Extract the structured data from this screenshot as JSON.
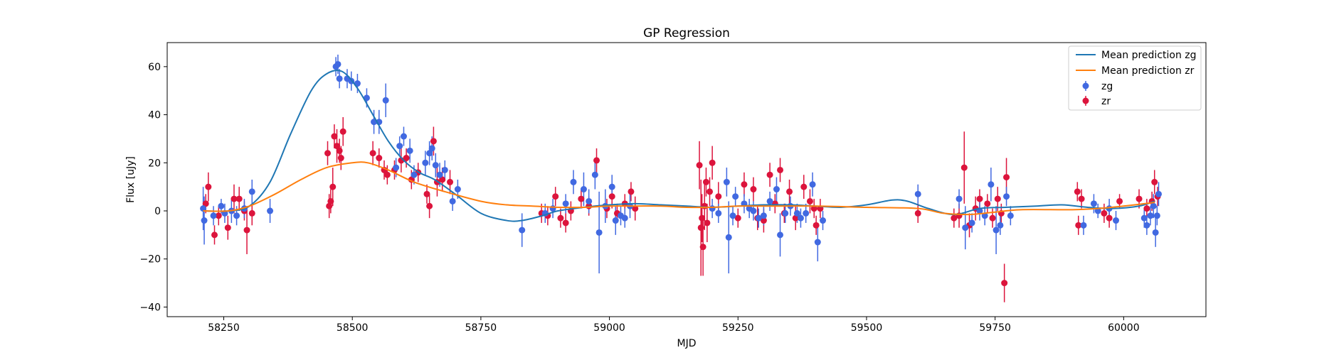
{
  "chart_data": {
    "type": "scatter",
    "title": "GP Regression",
    "xlabel": "MJD",
    "ylabel": "Flux [uJy]",
    "xlim": [
      58140,
      60160
    ],
    "ylim": [
      -44,
      70
    ],
    "xticks": [
      58250,
      58500,
      58750,
      59000,
      59250,
      59500,
      59750,
      60000
    ],
    "yticks": [
      -40,
      -20,
      0,
      20,
      40,
      60
    ],
    "legend_position": "upper right",
    "colors": {
      "zg_points": "#4169e1",
      "zr_points": "#dc143c",
      "zg_line": "#1f77b4",
      "zr_line": "#ff7f0e"
    },
    "lines": [
      {
        "name": "Mean prediction zg",
        "color": "#1f77b4",
        "x": [
          58210,
          58260,
          58300,
          58340,
          58380,
          58420,
          58450,
          58480,
          58510,
          58540,
          58570,
          58600,
          58630,
          58660,
          58700,
          58750,
          58800,
          58830,
          58870,
          58900,
          58950,
          59000,
          59050,
          59100,
          59150,
          59200,
          59250,
          59300,
          59350,
          59400,
          59450,
          59500,
          59550,
          59580,
          59620,
          59670,
          59720,
          59770,
          59830,
          59880,
          59930,
          59980,
          60030,
          60060
        ],
        "y": [
          0,
          0,
          2,
          12,
          32,
          50,
          57,
          58,
          51,
          40,
          29,
          21,
          16,
          13,
          7,
          -1,
          -4,
          -4,
          -2,
          0,
          1.5,
          2.5,
          3,
          2.5,
          2,
          1.5,
          2,
          2.5,
          2.5,
          2,
          1.5,
          2.5,
          4.5,
          4,
          1,
          -1.5,
          1,
          1.5,
          2,
          2.5,
          1.5,
          1,
          2,
          4
        ]
      },
      {
        "name": "Mean prediction zr",
        "color": "#ff7f0e",
        "x": [
          58210,
          58260,
          58300,
          58350,
          58400,
          58450,
          58500,
          58530,
          58570,
          58620,
          58680,
          58750,
          58800,
          58850,
          58900,
          58950,
          59000,
          59050,
          59100,
          59150,
          59200,
          59250,
          59300,
          59400,
          59500,
          59600,
          59650,
          59700,
          59750,
          59800,
          59900,
          59950,
          60000,
          60060
        ],
        "y": [
          0,
          0,
          2,
          7,
          13,
          18,
          20,
          20,
          17,
          12,
          8,
          4,
          2.5,
          2,
          1.5,
          1.5,
          2,
          2,
          2,
          1.5,
          1.5,
          2,
          2,
          2,
          1.5,
          1,
          -1,
          -1.5,
          -0.5,
          0.5,
          0.5,
          1,
          2,
          3.5
        ]
      }
    ],
    "series": [
      {
        "name": "zg",
        "color": "#4169e1",
        "points": [
          [
            58210,
            1,
            9
          ],
          [
            58212,
            -4,
            10
          ],
          [
            58230,
            -2,
            4
          ],
          [
            58245,
            2,
            3
          ],
          [
            58252,
            -1,
            4
          ],
          [
            58265,
            0,
            5
          ],
          [
            58275,
            -2,
            4
          ],
          [
            58290,
            1,
            4
          ],
          [
            58305,
            8,
            5
          ],
          [
            58340,
            0,
            5
          ],
          [
            58468,
            60,
            4
          ],
          [
            58472,
            61,
            4
          ],
          [
            58475,
            55,
            4
          ],
          [
            58490,
            55,
            4
          ],
          [
            58498,
            54,
            4
          ],
          [
            58510,
            53,
            4
          ],
          [
            58528,
            47,
            4
          ],
          [
            58542,
            37,
            5
          ],
          [
            58552,
            37,
            5
          ],
          [
            58565,
            46,
            7
          ],
          [
            58585,
            18,
            4
          ],
          [
            58592,
            27,
            4
          ],
          [
            58600,
            31,
            4
          ],
          [
            58612,
            25,
            5
          ],
          [
            58620,
            15,
            4
          ],
          [
            58642,
            20,
            5
          ],
          [
            58650,
            24,
            5
          ],
          [
            58655,
            26,
            5
          ],
          [
            58662,
            19,
            5
          ],
          [
            58670,
            15,
            5
          ],
          [
            58680,
            17,
            4
          ],
          [
            58695,
            4,
            4
          ],
          [
            58705,
            9,
            4
          ],
          [
            58830,
            -8,
            7
          ],
          [
            58875,
            -1,
            4
          ],
          [
            58890,
            1,
            4
          ],
          [
            58915,
            3,
            4
          ],
          [
            58930,
            12,
            5
          ],
          [
            58950,
            9,
            7
          ],
          [
            58960,
            4,
            5
          ],
          [
            58972,
            15,
            6
          ],
          [
            58980,
            -9,
            17
          ],
          [
            58992,
            2,
            7
          ],
          [
            59005,
            10,
            5
          ],
          [
            59012,
            -4,
            6
          ],
          [
            59022,
            -2,
            4
          ],
          [
            59030,
            -3,
            4
          ],
          [
            59040,
            2,
            5
          ],
          [
            59200,
            1,
            4
          ],
          [
            59212,
            -1,
            4
          ],
          [
            59228,
            12,
            6
          ],
          [
            59232,
            -11,
            15
          ],
          [
            59240,
            -2,
            4
          ],
          [
            59245,
            6,
            4
          ],
          [
            59262,
            3,
            4
          ],
          [
            59272,
            1,
            4
          ],
          [
            59280,
            0,
            4
          ],
          [
            59290,
            -3,
            4
          ],
          [
            59300,
            -2,
            4
          ],
          [
            59312,
            4,
            4
          ],
          [
            59325,
            9,
            5
          ],
          [
            59332,
            -10,
            9
          ],
          [
            59342,
            -1,
            4
          ],
          [
            59352,
            2,
            4
          ],
          [
            59365,
            -1,
            4
          ],
          [
            59372,
            -3,
            4
          ],
          [
            59382,
            -1,
            4
          ],
          [
            59395,
            11,
            5
          ],
          [
            59405,
            -13,
            8
          ],
          [
            59415,
            -4,
            4
          ],
          [
            59600,
            7,
            4
          ],
          [
            59680,
            5,
            4
          ],
          [
            59692,
            -7,
            9
          ],
          [
            59705,
            -5,
            4
          ],
          [
            59720,
            0,
            4
          ],
          [
            59730,
            -2,
            4
          ],
          [
            59742,
            11,
            7
          ],
          [
            59752,
            -8,
            10
          ],
          [
            59760,
            -6,
            4
          ],
          [
            59772,
            6,
            4
          ],
          [
            59780,
            -2,
            4
          ],
          [
            59922,
            -6,
            4
          ],
          [
            59942,
            3,
            4
          ],
          [
            59950,
            0,
            3
          ],
          [
            59972,
            1,
            4
          ],
          [
            59985,
            -4,
            4
          ],
          [
            60040,
            -3,
            4
          ],
          [
            60045,
            -6,
            4
          ],
          [
            60052,
            -2,
            4
          ],
          [
            60058,
            2,
            5
          ],
          [
            60062,
            -9,
            6
          ],
          [
            60065,
            -2,
            4
          ],
          [
            60068,
            7,
            5
          ]
        ]
      },
      {
        "name": "zr",
        "color": "#dc143c",
        "points": [
          [
            58215,
            3,
            4
          ],
          [
            58220,
            10,
            6
          ],
          [
            58232,
            -10,
            4
          ],
          [
            58240,
            -2,
            4
          ],
          [
            58258,
            -7,
            5
          ],
          [
            58270,
            5,
            6
          ],
          [
            58280,
            5,
            5
          ],
          [
            58290,
            0,
            4
          ],
          [
            58295,
            -8,
            10
          ],
          [
            58305,
            -1,
            5
          ],
          [
            58452,
            24,
            5
          ],
          [
            58455,
            2,
            5
          ],
          [
            58458,
            4,
            5
          ],
          [
            58462,
            10,
            8
          ],
          [
            58465,
            31,
            5
          ],
          [
            58470,
            27,
            7
          ],
          [
            58475,
            25,
            5
          ],
          [
            58478,
            22,
            5
          ],
          [
            58482,
            33,
            6
          ],
          [
            58540,
            24,
            5
          ],
          [
            58552,
            22,
            4
          ],
          [
            58562,
            17,
            4
          ],
          [
            58568,
            15,
            4
          ],
          [
            58582,
            17,
            4
          ],
          [
            58595,
            21,
            5
          ],
          [
            58605,
            22,
            4
          ],
          [
            58615,
            13,
            4
          ],
          [
            58628,
            16,
            4
          ],
          [
            58645,
            7,
            4
          ],
          [
            58650,
            2,
            5
          ],
          [
            58658,
            29,
            6
          ],
          [
            58665,
            12,
            6
          ],
          [
            58675,
            13,
            5
          ],
          [
            58690,
            12,
            5
          ],
          [
            58868,
            -1,
            4
          ],
          [
            58880,
            -2,
            4
          ],
          [
            58895,
            6,
            4
          ],
          [
            58905,
            -3,
            4
          ],
          [
            58915,
            -5,
            4
          ],
          [
            58925,
            0,
            4
          ],
          [
            58945,
            5,
            4
          ],
          [
            58960,
            2,
            4
          ],
          [
            58975,
            21,
            5
          ],
          [
            58995,
            1,
            4
          ],
          [
            59005,
            6,
            5
          ],
          [
            59015,
            -1,
            4
          ],
          [
            59030,
            3,
            4
          ],
          [
            59042,
            8,
            4
          ],
          [
            59050,
            1,
            5
          ],
          [
            59175,
            19,
            10
          ],
          [
            59178,
            -7,
            20
          ],
          [
            59180,
            -3,
            10
          ],
          [
            59182,
            -15,
            12
          ],
          [
            59185,
            2,
            10
          ],
          [
            59188,
            12,
            6
          ],
          [
            59190,
            -5,
            8
          ],
          [
            59195,
            8,
            6
          ],
          [
            59200,
            20,
            7
          ],
          [
            59212,
            6,
            6
          ],
          [
            59250,
            -3,
            4
          ],
          [
            59262,
            11,
            5
          ],
          [
            59280,
            9,
            5
          ],
          [
            59288,
            -3,
            5
          ],
          [
            59300,
            -4,
            5
          ],
          [
            59312,
            15,
            5
          ],
          [
            59322,
            3,
            4
          ],
          [
            59332,
            17,
            5
          ],
          [
            59340,
            -1,
            4
          ],
          [
            59350,
            8,
            5
          ],
          [
            59362,
            -3,
            5
          ],
          [
            59378,
            10,
            5
          ],
          [
            59390,
            4,
            5
          ],
          [
            59398,
            1,
            4
          ],
          [
            59402,
            -6,
            4
          ],
          [
            59410,
            1,
            4
          ],
          [
            59600,
            -1,
            4
          ],
          [
            59670,
            -3,
            4
          ],
          [
            59680,
            -2,
            5
          ],
          [
            59690,
            18,
            15
          ],
          [
            59700,
            -6,
            5
          ],
          [
            59712,
            1,
            5
          ],
          [
            59720,
            5,
            4
          ],
          [
            59735,
            3,
            4
          ],
          [
            59745,
            -3,
            4
          ],
          [
            59755,
            5,
            5
          ],
          [
            59762,
            -1,
            4
          ],
          [
            59768,
            -30,
            8
          ],
          [
            59772,
            14,
            8
          ],
          [
            59910,
            8,
            4
          ],
          [
            59912,
            -6,
            4
          ],
          [
            59918,
            5,
            4
          ],
          [
            59962,
            -1,
            4
          ],
          [
            59972,
            -3,
            4
          ],
          [
            59992,
            4,
            3
          ],
          [
            60030,
            5,
            4
          ],
          [
            60045,
            1,
            4
          ],
          [
            60055,
            4,
            4
          ],
          [
            60060,
            12,
            5
          ],
          [
            60066,
            6,
            4
          ]
        ]
      }
    ]
  }
}
